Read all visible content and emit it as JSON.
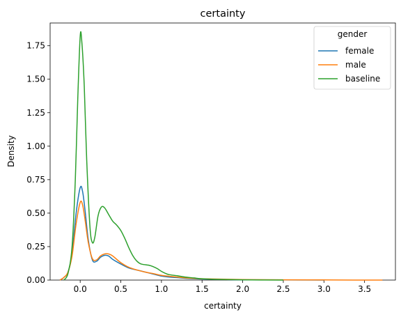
{
  "chart_data": {
    "type": "line",
    "title": "certainty",
    "xlabel": "certainty",
    "ylabel": "Density",
    "xlim": [
      -0.37,
      3.88
    ],
    "ylim": [
      0,
      1.92
    ],
    "xticks": [
      "0.0",
      "0.5",
      "1.0",
      "1.5",
      "2.0",
      "2.5",
      "3.0",
      "3.5"
    ],
    "xtick_values": [
      0,
      0.5,
      1,
      1.5,
      2,
      2.5,
      3,
      3.5
    ],
    "yticks": [
      "0.00",
      "0.25",
      "0.50",
      "0.75",
      "1.00",
      "1.25",
      "1.50",
      "1.75"
    ],
    "ytick_values": [
      0,
      0.25,
      0.5,
      0.75,
      1,
      1.25,
      1.5,
      1.75
    ],
    "grid": false,
    "legend": {
      "title": "gender",
      "placement": "top-right"
    },
    "series": [
      {
        "name": "female",
        "color": "#1f77b4",
        "points": [
          [
            -0.25,
            0
          ],
          [
            -0.2,
            0.02
          ],
          [
            -0.15,
            0.06
          ],
          [
            -0.1,
            0.2
          ],
          [
            -0.05,
            0.5
          ],
          [
            0,
            0.69
          ],
          [
            0.03,
            0.66
          ],
          [
            0.06,
            0.52
          ],
          [
            0.1,
            0.3
          ],
          [
            0.15,
            0.15
          ],
          [
            0.2,
            0.14
          ],
          [
            0.25,
            0.17
          ],
          [
            0.3,
            0.185
          ],
          [
            0.35,
            0.18
          ],
          [
            0.4,
            0.155
          ],
          [
            0.5,
            0.12
          ],
          [
            0.6,
            0.09
          ],
          [
            0.7,
            0.075
          ],
          [
            0.8,
            0.06
          ],
          [
            0.9,
            0.045
          ],
          [
            1.0,
            0.03
          ],
          [
            1.1,
            0.022
          ],
          [
            1.2,
            0.018
          ],
          [
            1.3,
            0.013
          ],
          [
            1.5,
            0.008
          ],
          [
            1.8,
            0.004
          ],
          [
            2.0,
            0.002
          ],
          [
            2.5,
            0.001
          ],
          [
            3.0,
            0
          ]
        ]
      },
      {
        "name": "male",
        "color": "#ff7f0e",
        "points": [
          [
            -0.25,
            0
          ],
          [
            -0.2,
            0.02
          ],
          [
            -0.15,
            0.06
          ],
          [
            -0.1,
            0.18
          ],
          [
            -0.05,
            0.42
          ],
          [
            0,
            0.58
          ],
          [
            0.03,
            0.56
          ],
          [
            0.06,
            0.45
          ],
          [
            0.1,
            0.28
          ],
          [
            0.15,
            0.16
          ],
          [
            0.2,
            0.15
          ],
          [
            0.25,
            0.18
          ],
          [
            0.3,
            0.195
          ],
          [
            0.35,
            0.195
          ],
          [
            0.4,
            0.18
          ],
          [
            0.5,
            0.13
          ],
          [
            0.6,
            0.095
          ],
          [
            0.7,
            0.075
          ],
          [
            0.8,
            0.06
          ],
          [
            0.9,
            0.048
          ],
          [
            1.0,
            0.035
          ],
          [
            1.1,
            0.028
          ],
          [
            1.2,
            0.022
          ],
          [
            1.3,
            0.016
          ],
          [
            1.5,
            0.01
          ],
          [
            2.0,
            0.004
          ],
          [
            2.5,
            0.002
          ],
          [
            3.0,
            0.001
          ],
          [
            3.5,
            0
          ],
          [
            3.72,
            0
          ]
        ]
      },
      {
        "name": "baseline",
        "color": "#2ca02c",
        "points": [
          [
            -0.2,
            0
          ],
          [
            -0.15,
            0.05
          ],
          [
            -0.1,
            0.25
          ],
          [
            -0.06,
            0.75
          ],
          [
            -0.03,
            1.35
          ],
          [
            0,
            1.82
          ],
          [
            0.02,
            1.78
          ],
          [
            0.05,
            1.45
          ],
          [
            0.08,
            0.9
          ],
          [
            0.12,
            0.4
          ],
          [
            0.15,
            0.28
          ],
          [
            0.18,
            0.32
          ],
          [
            0.22,
            0.48
          ],
          [
            0.26,
            0.545
          ],
          [
            0.3,
            0.54
          ],
          [
            0.35,
            0.49
          ],
          [
            0.4,
            0.44
          ],
          [
            0.45,
            0.41
          ],
          [
            0.5,
            0.37
          ],
          [
            0.55,
            0.31
          ],
          [
            0.6,
            0.24
          ],
          [
            0.65,
            0.18
          ],
          [
            0.7,
            0.14
          ],
          [
            0.75,
            0.12
          ],
          [
            0.85,
            0.11
          ],
          [
            0.9,
            0.1
          ],
          [
            0.95,
            0.085
          ],
          [
            1.0,
            0.065
          ],
          [
            1.05,
            0.05
          ],
          [
            1.1,
            0.04
          ],
          [
            1.2,
            0.032
          ],
          [
            1.3,
            0.022
          ],
          [
            1.4,
            0.016
          ],
          [
            1.5,
            0.01
          ],
          [
            1.7,
            0.005
          ],
          [
            2.0,
            0.002
          ],
          [
            2.5,
            0
          ]
        ]
      }
    ]
  }
}
